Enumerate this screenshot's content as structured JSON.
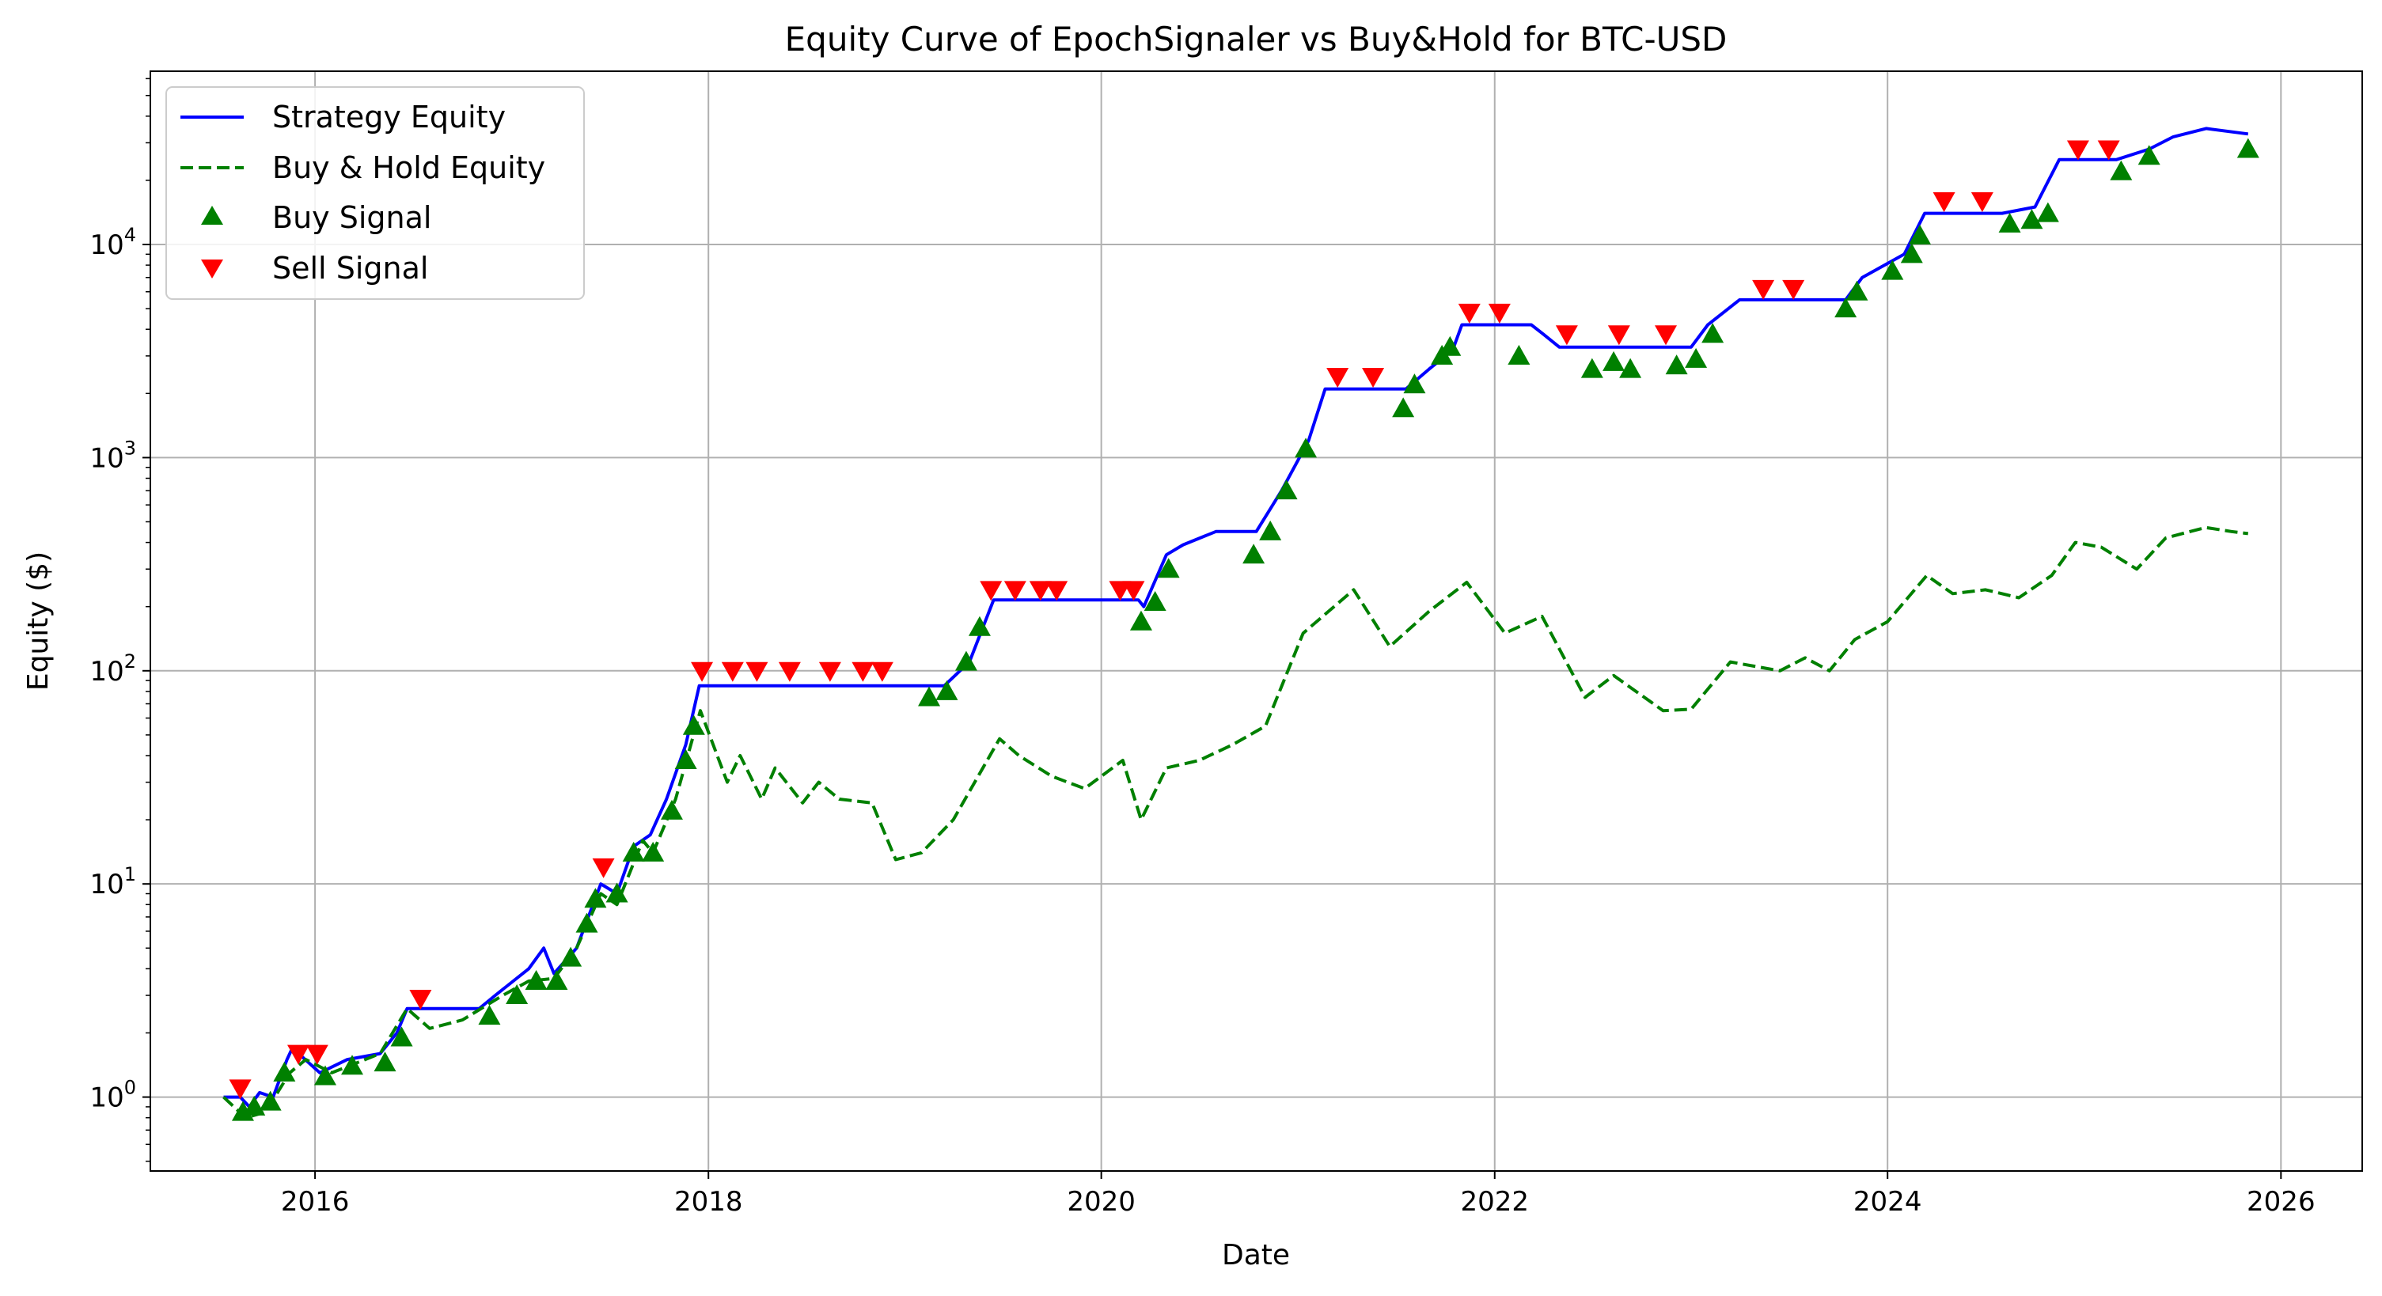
{
  "chart_data": {
    "type": "line",
    "title": "Equity Curve of EpochSignaler vs Buy&Hold for BTC-USD",
    "xlabel": "Date",
    "ylabel": "Equity ($)",
    "yscale": "log",
    "xlim": [
      "2015-03-01",
      "2026-06-01"
    ],
    "ylim": [
      0.45,
      65000
    ],
    "x_ticks": [
      "2016",
      "2018",
      "2020",
      "2022",
      "2024",
      "2026"
    ],
    "y_ticks": [
      {
        "value": 1,
        "base": "10",
        "exp": "0"
      },
      {
        "value": 10,
        "base": "10",
        "exp": "1"
      },
      {
        "value": 100,
        "base": "10",
        "exp": "2"
      },
      {
        "value": 1000,
        "base": "10",
        "exp": "3"
      },
      {
        "value": 10000,
        "base": "10",
        "exp": "4"
      }
    ],
    "grid": true,
    "legend_position": "top-left",
    "colors": {
      "strategy": "#0000ff",
      "buyhold": "#008000",
      "buy": "#008000",
      "sell": "#ff0000"
    },
    "legend": [
      "Strategy Equity",
      "Buy & Hold Equity",
      "Buy Signal",
      "Sell Signal"
    ],
    "series": [
      {
        "name": "Strategy Equity",
        "style": "solid",
        "points": [
          [
            "2015-07-15",
            1.0
          ],
          [
            "2015-08-15",
            1.0
          ],
          [
            "2015-09-01",
            0.9
          ],
          [
            "2015-09-20",
            1.05
          ],
          [
            "2015-10-15",
            1.0
          ],
          [
            "2015-11-10",
            1.5
          ],
          [
            "2015-11-20",
            1.7
          ],
          [
            "2016-01-10",
            1.3
          ],
          [
            "2016-03-01",
            1.5
          ],
          [
            "2016-05-01",
            1.6
          ],
          [
            "2016-06-01",
            2.0
          ],
          [
            "2016-06-20",
            2.6
          ],
          [
            "2016-11-01",
            2.6
          ],
          [
            "2016-12-01",
            3.0
          ],
          [
            "2017-02-01",
            4.0
          ],
          [
            "2017-03-01",
            5.0
          ],
          [
            "2017-03-20",
            3.8
          ],
          [
            "2017-05-01",
            5.0
          ],
          [
            "2017-06-15",
            10.0
          ],
          [
            "2017-07-15",
            9.0
          ],
          [
            "2017-08-15",
            15.0
          ],
          [
            "2017-09-15",
            17.0
          ],
          [
            "2017-10-15",
            25.0
          ],
          [
            "2017-11-20",
            45.0
          ],
          [
            "2017-12-15",
            85.0
          ],
          [
            "2019-03-15",
            85.0
          ],
          [
            "2019-05-01",
            110.0
          ],
          [
            "2019-06-15",
            215.0
          ],
          [
            "2020-03-10",
            215.0
          ],
          [
            "2020-03-20",
            200.0
          ],
          [
            "2020-05-01",
            350.0
          ],
          [
            "2020-06-01",
            390.0
          ],
          [
            "2020-08-01",
            450.0
          ],
          [
            "2020-10-15",
            450.0
          ],
          [
            "2020-12-01",
            700.0
          ],
          [
            "2021-01-20",
            1200.0
          ],
          [
            "2021-02-20",
            2100.0
          ],
          [
            "2021-07-20",
            2100.0
          ],
          [
            "2021-09-01",
            2600.0
          ],
          [
            "2021-10-15",
            3200.0
          ],
          [
            "2021-11-01",
            4200.0
          ],
          [
            "2022-03-10",
            4200.0
          ],
          [
            "2022-04-01",
            3800.0
          ],
          [
            "2022-05-01",
            3300.0
          ],
          [
            "2022-10-01",
            3300.0
          ],
          [
            "2023-01-01",
            3300.0
          ],
          [
            "2023-02-01",
            4200.0
          ],
          [
            "2023-04-01",
            5500.0
          ],
          [
            "2023-10-15",
            5500.0
          ],
          [
            "2023-11-15",
            7000.0
          ],
          [
            "2024-02-01",
            9000.0
          ],
          [
            "2024-03-10",
            14000.0
          ],
          [
            "2024-08-01",
            14000.0
          ],
          [
            "2024-10-01",
            15000.0
          ],
          [
            "2024-11-15",
            25000.0
          ],
          [
            "2025-03-01",
            25000.0
          ],
          [
            "2025-05-01",
            28000.0
          ],
          [
            "2025-06-15",
            32000.0
          ],
          [
            "2025-08-15",
            35000.0
          ],
          [
            "2025-11-01",
            33000.0
          ]
        ]
      },
      {
        "name": "Buy & Hold Equity",
        "style": "dashed",
        "points": [
          [
            "2015-07-15",
            1.0
          ],
          [
            "2015-08-25",
            0.8
          ],
          [
            "2015-10-01",
            0.85
          ],
          [
            "2015-11-15",
            1.3
          ],
          [
            "2015-12-15",
            1.5
          ],
          [
            "2016-02-01",
            1.3
          ],
          [
            "2016-05-01",
            1.6
          ],
          [
            "2016-06-20",
            2.6
          ],
          [
            "2016-08-01",
            2.1
          ],
          [
            "2016-10-01",
            2.3
          ],
          [
            "2016-12-15",
            3.0
          ],
          [
            "2017-02-01",
            3.5
          ],
          [
            "2017-03-20",
            3.6
          ],
          [
            "2017-05-01",
            5.0
          ],
          [
            "2017-06-15",
            9.0
          ],
          [
            "2017-07-15",
            8.0
          ],
          [
            "2017-09-01",
            16.0
          ],
          [
            "2017-09-20",
            14.0
          ],
          [
            "2017-11-01",
            25.0
          ],
          [
            "2017-12-17",
            65.0
          ],
          [
            "2018-02-05",
            30.0
          ],
          [
            "2018-03-01",
            40.0
          ],
          [
            "2018-04-10",
            25.0
          ],
          [
            "2018-05-05",
            35.0
          ],
          [
            "2018-06-25",
            24.0
          ],
          [
            "2018-07-25",
            30.0
          ],
          [
            "2018-09-01",
            25.0
          ],
          [
            "2018-11-01",
            24.0
          ],
          [
            "2018-12-15",
            13.0
          ],
          [
            "2019-02-01",
            14.0
          ],
          [
            "2019-04-01",
            20.0
          ],
          [
            "2019-06-26",
            48.0
          ],
          [
            "2019-08-01",
            40.0
          ],
          [
            "2019-10-01",
            32.0
          ],
          [
            "2019-12-01",
            28.0
          ],
          [
            "2020-02-10",
            38.0
          ],
          [
            "2020-03-15",
            20.0
          ],
          [
            "2020-05-01",
            35.0
          ],
          [
            "2020-07-01",
            38.0
          ],
          [
            "2020-09-01",
            45.0
          ],
          [
            "2020-11-01",
            55.0
          ],
          [
            "2021-01-10",
            150.0
          ],
          [
            "2021-04-14",
            240.0
          ],
          [
            "2021-06-20",
            130.0
          ],
          [
            "2021-09-01",
            190.0
          ],
          [
            "2021-11-10",
            260.0
          ],
          [
            "2022-01-20",
            150.0
          ],
          [
            "2022-03-30",
            180.0
          ],
          [
            "2022-06-18",
            75.0
          ],
          [
            "2022-08-10",
            95.0
          ],
          [
            "2022-11-10",
            65.0
          ],
          [
            "2023-01-01",
            66.0
          ],
          [
            "2023-03-15",
            110.0
          ],
          [
            "2023-06-15",
            100.0
          ],
          [
            "2023-08-01",
            115.0
          ],
          [
            "2023-09-15",
            100.0
          ],
          [
            "2023-11-01",
            140.0
          ],
          [
            "2024-01-01",
            170.0
          ],
          [
            "2024-03-14",
            280.0
          ],
          [
            "2024-05-01",
            230.0
          ],
          [
            "2024-07-01",
            240.0
          ],
          [
            "2024-09-01",
            220.0
          ],
          [
            "2024-11-01",
            280.0
          ],
          [
            "2024-12-15",
            400.0
          ],
          [
            "2025-02-01",
            380.0
          ],
          [
            "2025-04-08",
            300.0
          ],
          [
            "2025-06-01",
            420.0
          ],
          [
            "2025-08-14",
            470.0
          ],
          [
            "2025-10-01",
            450.0
          ],
          [
            "2025-11-01",
            440.0
          ]
        ]
      }
    ],
    "buy_signals": [
      [
        "2015-08-20",
        0.85
      ],
      [
        "2015-09-10",
        0.9
      ],
      [
        "2015-10-10",
        0.95
      ],
      [
        "2015-11-05",
        1.3
      ],
      [
        "2016-01-20",
        1.25
      ],
      [
        "2016-03-10",
        1.4
      ],
      [
        "2016-05-10",
        1.45
      ],
      [
        "2016-06-10",
        1.9
      ],
      [
        "2016-11-20",
        2.4
      ],
      [
        "2017-01-10",
        3.0
      ],
      [
        "2017-02-15",
        3.5
      ],
      [
        "2017-03-25",
        3.5
      ],
      [
        "2017-04-20",
        4.5
      ],
      [
        "2017-05-20",
        6.5
      ],
      [
        "2017-06-05",
        8.5
      ],
      [
        "2017-07-15",
        9.0
      ],
      [
        "2017-08-15",
        14.0
      ],
      [
        "2017-09-20",
        14.0
      ],
      [
        "2017-10-25",
        22.0
      ],
      [
        "2017-11-20",
        38.0
      ],
      [
        "2017-12-05",
        55.0
      ],
      [
        "2019-02-15",
        75.0
      ],
      [
        "2019-03-20",
        80.0
      ],
      [
        "2019-04-25",
        110.0
      ],
      [
        "2019-05-20",
        160.0
      ],
      [
        "2020-03-15",
        170.0
      ],
      [
        "2020-04-10",
        210.0
      ],
      [
        "2020-05-05",
        300.0
      ],
      [
        "2020-10-10",
        350.0
      ],
      [
        "2020-11-10",
        450.0
      ],
      [
        "2020-12-10",
        700.0
      ],
      [
        "2021-01-15",
        1100.0
      ],
      [
        "2021-07-15",
        1700.0
      ],
      [
        "2021-08-05",
        2200.0
      ],
      [
        "2021-09-25",
        3000.0
      ],
      [
        "2021-10-10",
        3300.0
      ],
      [
        "2022-02-15",
        3000.0
      ],
      [
        "2022-07-01",
        2600.0
      ],
      [
        "2022-08-10",
        2800.0
      ],
      [
        "2022-09-10",
        2600.0
      ],
      [
        "2022-12-05",
        2700.0
      ],
      [
        "2023-01-10",
        2900.0
      ],
      [
        "2023-02-10",
        3800.0
      ],
      [
        "2023-10-15",
        5000.0
      ],
      [
        "2023-11-05",
        6000.0
      ],
      [
        "2024-01-10",
        7500.0
      ],
      [
        "2024-02-15",
        9000.0
      ],
      [
        "2024-03-01",
        11000.0
      ],
      [
        "2024-08-15",
        12500.0
      ],
      [
        "2024-09-25",
        13000.0
      ],
      [
        "2024-10-25",
        14000.0
      ],
      [
        "2025-03-10",
        22000.0
      ],
      [
        "2025-05-01",
        26000.0
      ],
      [
        "2025-11-01",
        28000.0
      ]
    ],
    "sell_signals": [
      [
        "2015-08-15",
        1.1
      ],
      [
        "2015-12-01",
        1.6
      ],
      [
        "2016-01-05",
        1.6
      ],
      [
        "2016-07-15",
        2.9
      ],
      [
        "2017-06-20",
        12.0
      ],
      [
        "2017-12-20",
        100.0
      ],
      [
        "2018-02-15",
        100.0
      ],
      [
        "2018-04-01",
        100.0
      ],
      [
        "2018-06-01",
        100.0
      ],
      [
        "2018-08-15",
        100.0
      ],
      [
        "2018-10-15",
        100.0
      ],
      [
        "2018-11-20",
        100.0
      ],
      [
        "2019-06-10",
        240.0
      ],
      [
        "2019-07-25",
        240.0
      ],
      [
        "2019-09-10",
        240.0
      ],
      [
        "2019-10-10",
        240.0
      ],
      [
        "2020-02-05",
        240.0
      ],
      [
        "2020-03-01",
        240.0
      ],
      [
        "2021-03-15",
        2400.0
      ],
      [
        "2021-05-20",
        2400.0
      ],
      [
        "2021-11-15",
        4800.0
      ],
      [
        "2022-01-10",
        4800.0
      ],
      [
        "2022-05-15",
        3800.0
      ],
      [
        "2022-08-20",
        3800.0
      ],
      [
        "2022-11-15",
        3800.0
      ],
      [
        "2023-05-15",
        6200.0
      ],
      [
        "2023-07-10",
        6200.0
      ],
      [
        "2024-04-15",
        16000.0
      ],
      [
        "2024-06-25",
        16000.0
      ],
      [
        "2024-12-20",
        28000.0
      ],
      [
        "2025-02-15",
        28000.0
      ]
    ]
  }
}
